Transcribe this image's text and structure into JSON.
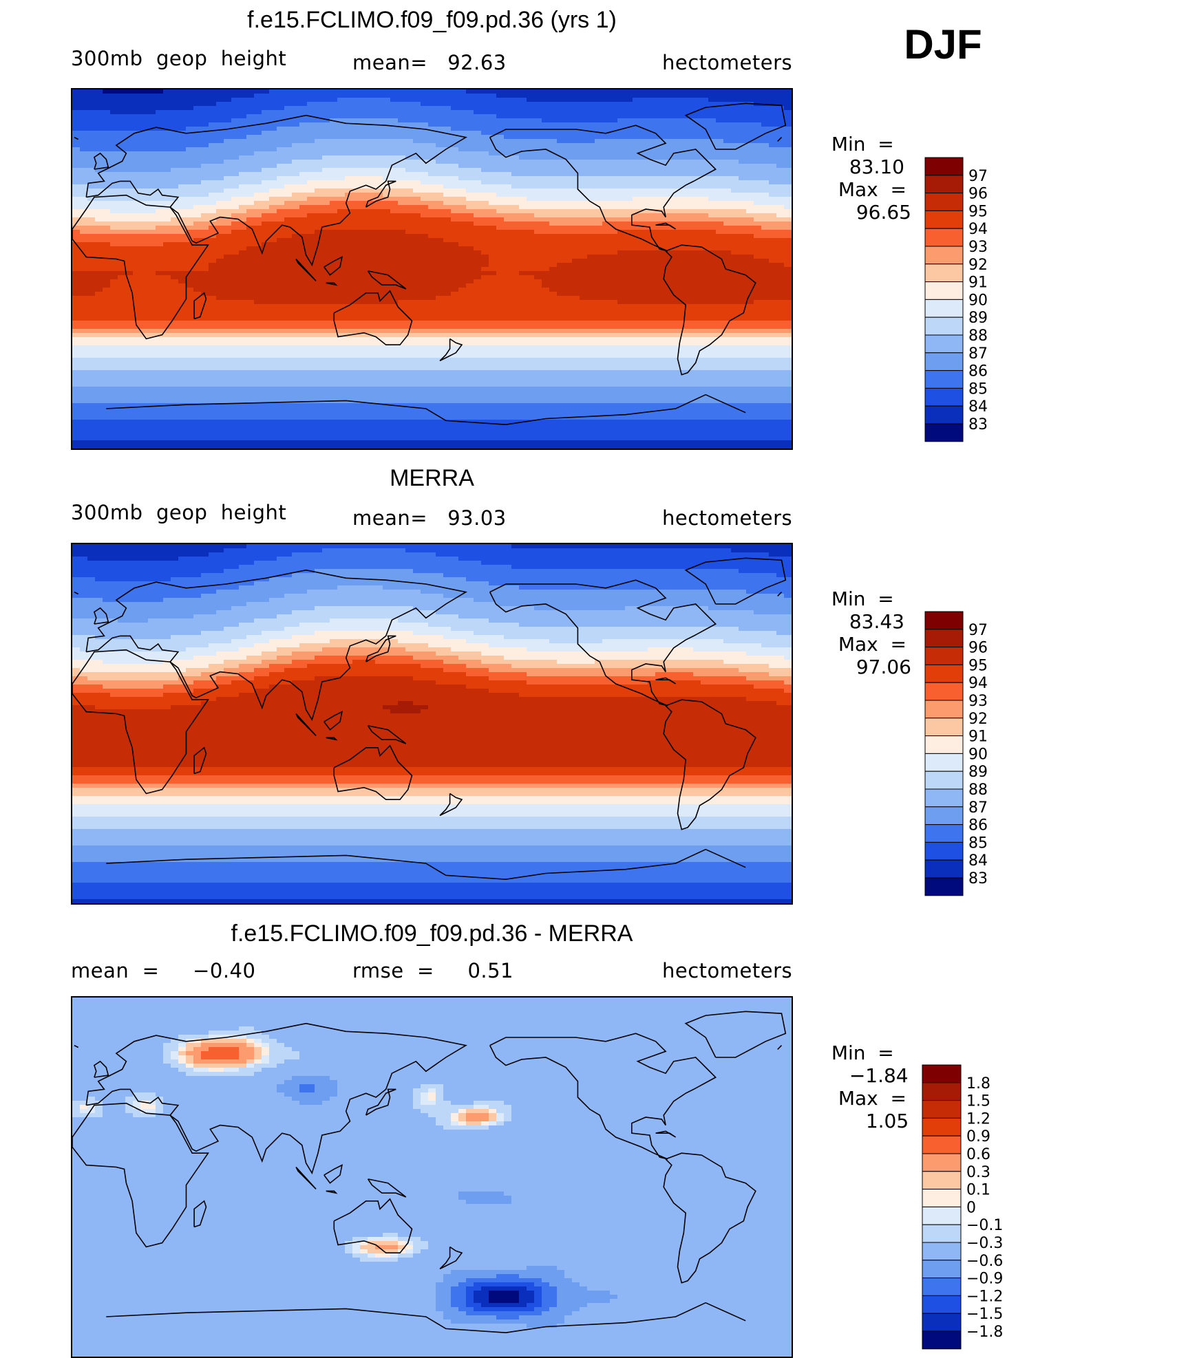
{
  "season": "DJF",
  "panels": [
    {
      "title": "f.e15.FCLIMO.f09_f09.pd.36 (yrs 1)",
      "left_label": "300mb  geop  height",
      "center_label": "mean=   92.63",
      "right_label": "hectometers",
      "min_label": "Min  =",
      "min_value": "83.10",
      "max_label": "Max  =",
      "max_value": "96.65",
      "variant": "model"
    },
    {
      "title": "MERRA",
      "left_label": "300mb  geop  height",
      "center_label": "mean=   93.03",
      "right_label": "hectometers",
      "min_label": "Min  =",
      "min_value": "83.43",
      "max_label": "Max  =",
      "max_value": "97.06",
      "variant": "obs"
    },
    {
      "title": "f.e15.FCLIMO.f09_f09.pd.36 - MERRA",
      "left_label": "mean  =     −0.40",
      "center_label": "rmse  =     0.51",
      "right_label": "hectometers",
      "min_label": "Min  =",
      "min_value": "−1.84",
      "max_label": "Max  =",
      "max_value": "1.05",
      "variant": "diff"
    }
  ],
  "colorbars": {
    "height": {
      "labels": [
        "97",
        "96",
        "95",
        "94",
        "93",
        "92",
        "91",
        "90",
        "89",
        "88",
        "87",
        "86",
        "85",
        "84",
        "83"
      ],
      "colors": [
        "#7f0000",
        "#a51b06",
        "#c62c06",
        "#e23e0a",
        "#f8602f",
        "#fb9b6e",
        "#fcc7a3",
        "#feeee1",
        "#dceaf9",
        "#bcd7f8",
        "#8fb6f5",
        "#6e9ef0",
        "#3f74ef",
        "#1f50e4",
        "#0a2fbd",
        "#000a7c"
      ]
    },
    "diff": {
      "labels": [
        "1.8",
        "1.5",
        "1.2",
        "0.9",
        "0.6",
        "0.3",
        "0.1",
        "0",
        "−0.1",
        "−0.3",
        "−0.6",
        "−0.9",
        "−1.2",
        "−1.5",
        "−1.8"
      ],
      "colors": [
        "#7f0000",
        "#a51b06",
        "#c62c06",
        "#e23e0a",
        "#f8602f",
        "#fb9b6e",
        "#fcc7a3",
        "#feeee1",
        "#dceaf9",
        "#bcd7f8",
        "#8fb6f5",
        "#6e9ef0",
        "#3f74ef",
        "#1f50e4",
        "#0a2fbd",
        "#000a7c"
      ]
    }
  }
}
